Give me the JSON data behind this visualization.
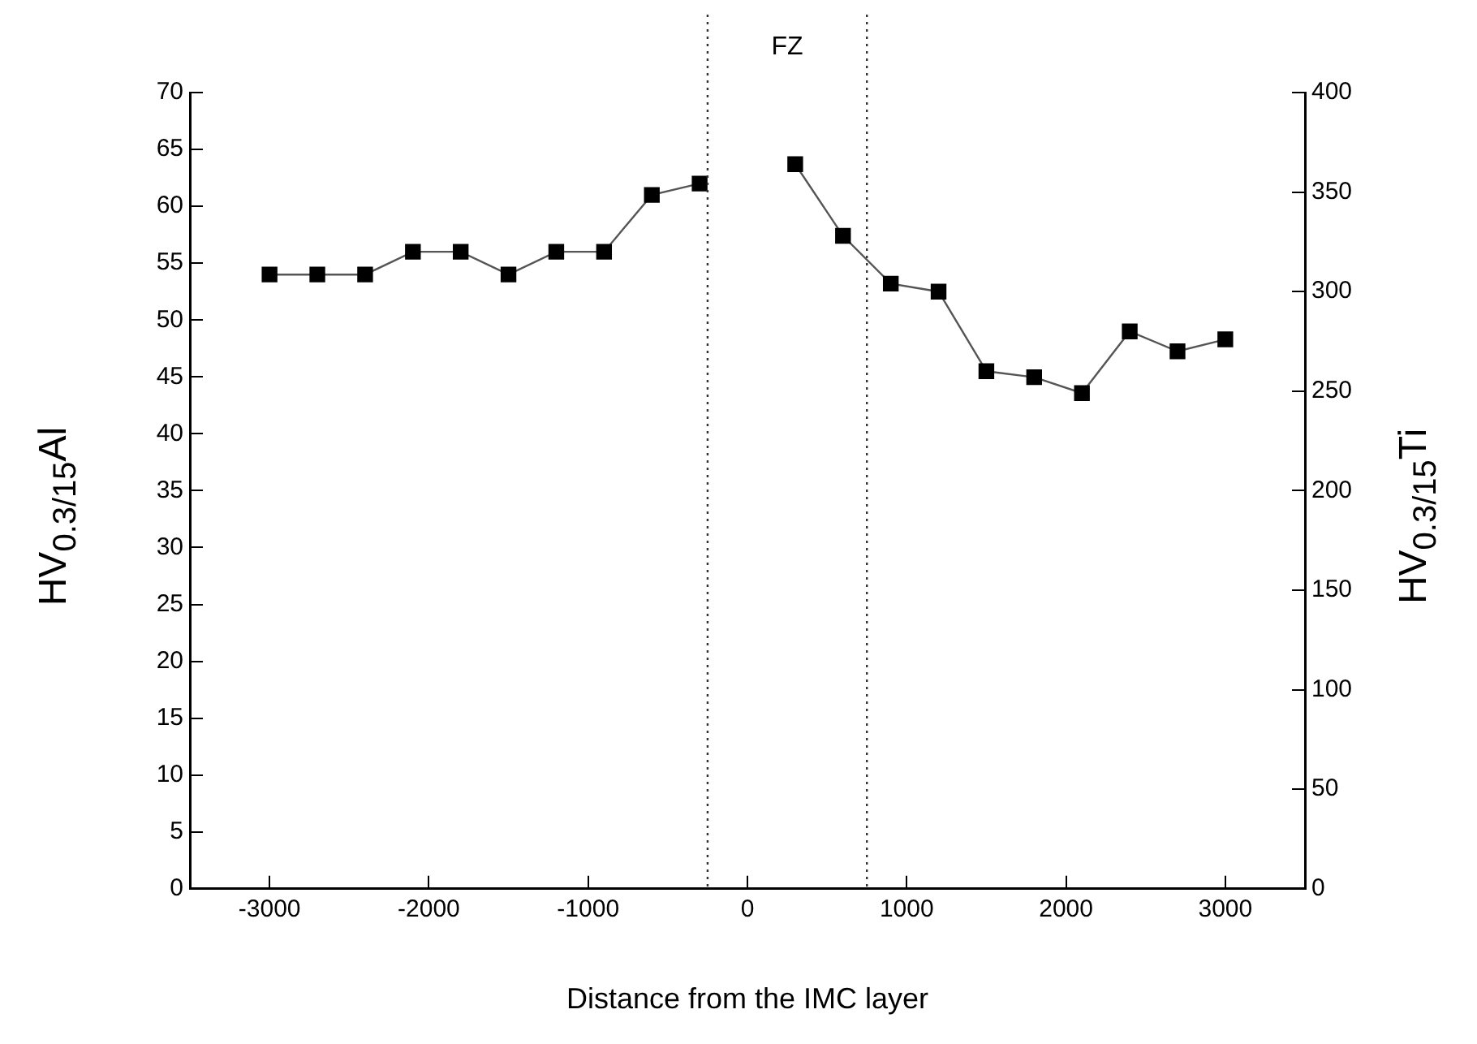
{
  "chart_data": {
    "type": "line",
    "xlabel": "Distance from the IMC layer",
    "ylabel": "HV$_{0.3/15}$Al",
    "y2label": "HV$_{0.3/15}$Ti",
    "series": [
      {
        "color": "#000000",
        "x": [
          -3000,
          -2700,
          -2400,
          -2100,
          -1800,
          -1500,
          -1200,
          -900,
          -600,
          -300
        ],
        "values": [
          54,
          54,
          54,
          56,
          56,
          54,
          56,
          56,
          61,
          62
        ]
      },
      {
        "color": "#000000",
        "axis": "y2",
        "x": [
          300,
          600,
          900,
          1200,
          1500,
          1800,
          2100,
          2400,
          2700,
          3000
        ],
        "values": [
          364,
          328,
          304,
          300,
          260,
          257,
          249,
          280,
          270,
          276
        ]
      }
    ],
    "xlim": [
      -3500,
      3500
    ],
    "xticks": [
      -3000,
      -2000,
      -1000,
      0,
      1000,
      2000,
      3000
    ],
    "ylim": [
      0,
      70
    ],
    "yticks": [
      0,
      5,
      10,
      15,
      20,
      25,
      30,
      35,
      40,
      45,
      50,
      55,
      60,
      65,
      70
    ],
    "y2lim": [
      0,
      400
    ],
    "y2ticks": [
      0,
      50,
      100,
      150,
      200,
      250,
      300,
      350,
      400
    ],
    "ref_lines": [
      {
        "axis": "x",
        "value": -250,
        "line_style": "dotted",
        "color": "#333333"
      },
      {
        "axis": "x",
        "value": 750,
        "line_style": "dotted",
        "color": "#333333"
      }
    ],
    "annotations": [
      "FZ"
    ],
    "marker": "square",
    "line_style": "solid",
    "grid": false,
    "legend": false
  }
}
